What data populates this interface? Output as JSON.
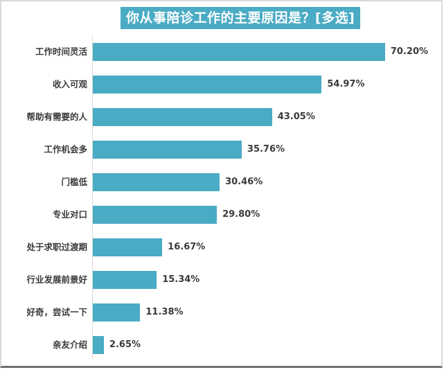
{
  "chart_data": {
    "type": "bar",
    "orientation": "horizontal",
    "title": "你从事陪诊工作的主要原因是？[多选]",
    "xlabel": "",
    "ylabel": "",
    "xlim": [
      0,
      75
    ],
    "grid": false,
    "legend": null,
    "bar_color": "#4aabc4",
    "title_bg_color": "#4aabc4",
    "categories": [
      "工作时间灵活",
      "收入可观",
      "帮助有需要的人",
      "工作机会多",
      "门槛低",
      "专业对口",
      "处于求职过渡期",
      "行业发展前景好",
      "好奇，尝试一下",
      "亲友介绍"
    ],
    "values": [
      70.2,
      54.97,
      43.05,
      35.76,
      30.46,
      29.8,
      16.67,
      15.34,
      11.38,
      2.65
    ],
    "value_labels": [
      "70.20%",
      "54.97%",
      "43.05%",
      "35.76%",
      "30.46%",
      "29.80%",
      "16.67%",
      "15.34%",
      "11.38%",
      "2.65%"
    ]
  }
}
